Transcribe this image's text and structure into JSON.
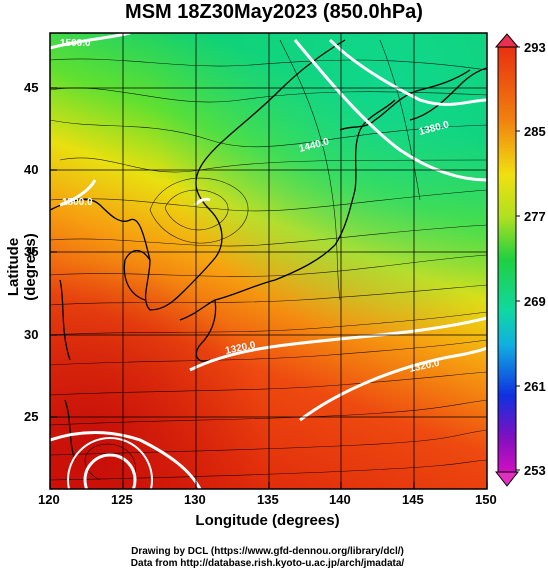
{
  "title": "MSM 18Z30May2023 (850.0hPa)",
  "x_axis": {
    "label": "Longitude (degrees)",
    "ticks": [
      "120",
      "125",
      "130",
      "135",
      "140",
      "145",
      "150"
    ]
  },
  "y_axis": {
    "label": "Latitude  (degrees)",
    "ticks": [
      "45",
      "40",
      "35",
      "30",
      "25"
    ]
  },
  "colorbar": {
    "ticks": [
      "293",
      "285",
      "277",
      "269",
      "261",
      "253"
    ]
  },
  "contours": [
    "1500.0",
    "1440.0",
    "1380.0",
    "1320.0",
    "1320.0",
    "1500.0"
  ],
  "footer": {
    "line1": "Drawing by DCL (https://www.gfd-dennou.org/library/dcl/)",
    "line2": "Data from http://database.rish.kyoto-u.ac.jp/arch/jmadata/"
  },
  "colors": {
    "warm": "#e02810",
    "mid": "#ffd000",
    "cool": "#10d060",
    "grid": "#000000"
  }
}
